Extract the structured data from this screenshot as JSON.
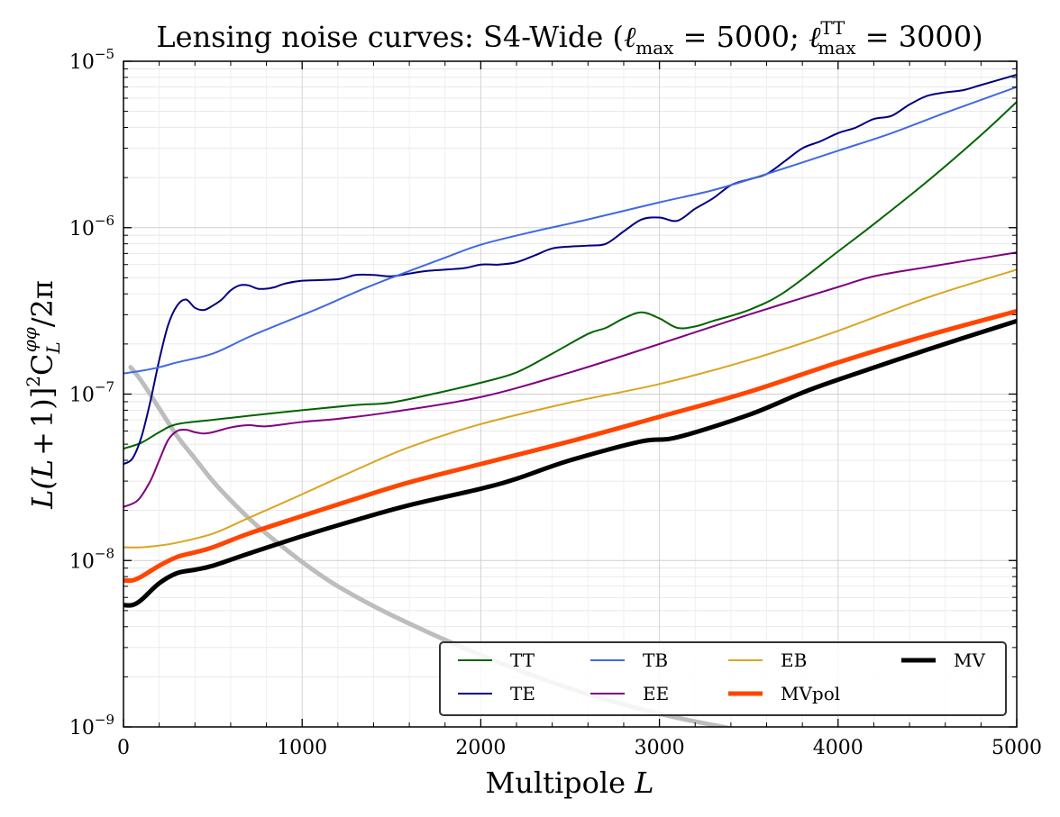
{
  "chart_data": {
    "type": "line",
    "title": "Lensing noise curves: S4-Wide (ℓmax = 5000; ℓmax TT = 3000)",
    "title_parts": {
      "prefix": "Lensing noise curves: S4-Wide (",
      "ell": "ℓ",
      "sub_max": "max",
      "eq1": " = 5000; ",
      "ell2": "ℓ",
      "sup_tt": "TT",
      "sub_max2": "max",
      "eq2": " = 3000)"
    },
    "xlabel": "Multipole L",
    "xlabel_parts": {
      "text": "Multipole ",
      "var": "L"
    },
    "ylabel": "L(L+1)]²C_L^φφ/2π",
    "ylabel_parts": {
      "a": "L(L",
      "b": "+",
      "c": "1)]",
      "sq": "2",
      "C": "C",
      "sub": "L",
      "sup": "φφ",
      "tail": "/2π"
    },
    "xlim": [
      0,
      5000
    ],
    "ylim": [
      1e-09,
      1e-05
    ],
    "yscale": "log",
    "grid": true,
    "legend_position": "lower-right",
    "xticks": [
      {
        "value": 0,
        "label": "0"
      },
      {
        "value": 1000,
        "label": "1000"
      },
      {
        "value": 2000,
        "label": "2000"
      },
      {
        "value": 3000,
        "label": "3000"
      },
      {
        "value": 4000,
        "label": "4000"
      },
      {
        "value": 5000,
        "label": "5000"
      }
    ],
    "yticks": [
      {
        "value": 1e-09,
        "base": "10",
        "exp": "−9"
      },
      {
        "value": 1e-08,
        "base": "10",
        "exp": "−8"
      },
      {
        "value": 1e-07,
        "base": "10",
        "exp": "−7"
      },
      {
        "value": 1e-06,
        "base": "10",
        "exp": "−6"
      },
      {
        "value": 1e-05,
        "base": "10",
        "exp": "−5"
      }
    ],
    "series": [
      {
        "name": "",
        "color": "#bdbdbd",
        "width": 5,
        "legend": false,
        "x": [
          40,
          100,
          200,
          300,
          400,
          500,
          600,
          700,
          800,
          1000,
          1200,
          1500,
          2000,
          2500,
          3000,
          3400
        ],
        "y": [
          1.45e-07,
          1.2e-07,
          8.2e-08,
          5.6e-08,
          4.1e-08,
          3e-08,
          2.3e-08,
          1.8e-08,
          1.45e-08,
          9.8e-09,
          7e-09,
          4.7e-09,
          2.7e-09,
          1.7e-09,
          1.2e-09,
          9.8e-10
        ]
      },
      {
        "name": "TT",
        "color": "#006400",
        "width": 2,
        "x": [
          0,
          100,
          200,
          300,
          500,
          700,
          1000,
          1300,
          1500,
          1800,
          2000,
          2200,
          2400,
          2600,
          2700,
          2800,
          2900,
          3000,
          3100,
          3200,
          3300,
          3500,
          3700,
          4000,
          4200,
          4500,
          4800,
          5000
        ],
        "y": [
          4.7e-08,
          5.1e-08,
          5.9e-08,
          6.6e-08,
          7e-08,
          7.4e-08,
          8e-08,
          8.6e-08,
          8.9e-08,
          1.04e-07,
          1.17e-07,
          1.35e-07,
          1.75e-07,
          2.3e-07,
          2.5e-07,
          2.85e-07,
          3.1e-07,
          2.85e-07,
          2.5e-07,
          2.55e-07,
          2.75e-07,
          3.2e-07,
          4.1e-07,
          7.2e-07,
          1.05e-06,
          1.9e-06,
          3.6e-06,
          5.7e-06
        ]
      },
      {
        "name": "TE",
        "color": "#000080",
        "width": 2,
        "x": [
          0,
          50,
          100,
          150,
          200,
          250,
          300,
          350,
          400,
          450,
          500,
          550,
          600,
          650,
          700,
          750,
          800,
          850,
          900,
          1000,
          1200,
          1300,
          1400,
          1500,
          1600,
          1700,
          1900,
          2000,
          2100,
          2200,
          2300,
          2400,
          2500,
          2600,
          2700,
          2800,
          2900,
          3000,
          3100,
          3200,
          3300,
          3400,
          3500,
          3600,
          3700,
          3800,
          3900,
          4000,
          4100,
          4200,
          4300,
          4400,
          4500,
          4600,
          4700,
          4800,
          5000
        ],
        "y": [
          3.8e-08,
          4.1e-08,
          5.5e-08,
          9e-08,
          1.6e-07,
          2.6e-07,
          3.4e-07,
          3.7e-07,
          3.3e-07,
          3.2e-07,
          3.4e-07,
          3.7e-07,
          4.2e-07,
          4.5e-07,
          4.5e-07,
          4.3e-07,
          4.3e-07,
          4.4e-07,
          4.6e-07,
          4.8e-07,
          4.9e-07,
          5.2e-07,
          5.2e-07,
          5.1e-07,
          5.3e-07,
          5.5e-07,
          5.7e-07,
          6e-07,
          6e-07,
          6.2e-07,
          6.8e-07,
          7.5e-07,
          7.7e-07,
          7.8e-07,
          8e-07,
          9.5e-07,
          1.12e-06,
          1.15e-06,
          1.1e-06,
          1.3e-06,
          1.5e-06,
          1.8e-06,
          1.95e-06,
          2.1e-06,
          2.5e-06,
          3e-06,
          3.3e-06,
          3.7e-06,
          4e-06,
          4.5e-06,
          4.7e-06,
          5.5e-06,
          6.2e-06,
          6.5e-06,
          6.7e-06,
          7.2e-06,
          8.3e-06
        ]
      },
      {
        "name": "TB",
        "color": "#4169e1",
        "width": 2,
        "x": [
          0,
          100,
          200,
          300,
          500,
          700,
          900,
          1100,
          1300,
          1500,
          1800,
          2000,
          2300,
          2600,
          3000,
          3300,
          3600,
          4000,
          4300,
          4600,
          5000
        ],
        "y": [
          1.33e-07,
          1.38e-07,
          1.45e-07,
          1.55e-07,
          1.75e-07,
          2.2e-07,
          2.7e-07,
          3.3e-07,
          4.1e-07,
          5e-07,
          6.6e-07,
          7.9e-07,
          9.5e-07,
          1.12e-06,
          1.42e-06,
          1.68e-06,
          2.1e-06,
          2.9e-06,
          3.7e-06,
          4.9e-06,
          7e-06
        ]
      },
      {
        "name": "EE",
        "color": "#800080",
        "width": 2,
        "x": [
          0,
          80,
          150,
          200,
          250,
          300,
          350,
          400,
          450,
          500,
          600,
          700,
          800,
          1000,
          1200,
          1500,
          2000,
          2500,
          3000,
          3500,
          4000,
          4200,
          4500,
          5000
        ],
        "y": [
          2.1e-08,
          2.3e-08,
          3e-08,
          4e-08,
          5.3e-08,
          6e-08,
          6.1e-08,
          5.9e-08,
          5.8e-08,
          5.9e-08,
          6.3e-08,
          6.5e-08,
          6.4e-08,
          6.8e-08,
          7.1e-08,
          7.8e-08,
          9.6e-08,
          1.35e-07,
          2e-07,
          3e-07,
          4.4e-07,
          5.1e-07,
          5.8e-07,
          7.1e-07
        ]
      },
      {
        "name": "EB",
        "color": "#daa520",
        "width": 2,
        "x": [
          0,
          100,
          200,
          300,
          500,
          700,
          1000,
          1300,
          1600,
          2000,
          2500,
          3000,
          3500,
          4000,
          4500,
          5000
        ],
        "y": [
          1.2e-08,
          1.2e-08,
          1.23e-08,
          1.28e-08,
          1.45e-08,
          1.8e-08,
          2.5e-08,
          3.5e-08,
          4.8e-08,
          6.6e-08,
          8.9e-08,
          1.15e-07,
          1.6e-07,
          2.4e-07,
          3.8e-07,
          5.6e-07
        ]
      },
      {
        "name": "MVpol",
        "color": "#ff4500",
        "width": 5,
        "x": [
          0,
          50,
          100,
          200,
          300,
          400,
          500,
          700,
          1000,
          1300,
          1600,
          2000,
          2500,
          3000,
          3500,
          4000,
          4500,
          5000
        ],
        "y": [
          7.6e-09,
          7.6e-09,
          8e-09,
          9.3e-09,
          1.05e-08,
          1.12e-08,
          1.2e-08,
          1.45e-08,
          1.85e-08,
          2.35e-08,
          2.95e-08,
          3.8e-08,
          5.2e-08,
          7.3e-08,
          1.03e-07,
          1.55e-07,
          2.25e-07,
          3.15e-07
        ]
      },
      {
        "name": "MV",
        "color": "#000000",
        "width": 5,
        "x": [
          0,
          50,
          100,
          200,
          300,
          400,
          500,
          700,
          1000,
          1300,
          1600,
          2000,
          2200,
          2500,
          2900,
          3100,
          3500,
          3800,
          4000,
          4500,
          5000
        ],
        "y": [
          5.4e-09,
          5.4e-09,
          5.8e-09,
          7.3e-09,
          8.4e-09,
          8.8e-09,
          9.3e-09,
          1.1e-08,
          1.4e-08,
          1.75e-08,
          2.15e-08,
          2.7e-08,
          3.1e-08,
          4e-08,
          5.2e-08,
          5.5e-08,
          7.5e-08,
          1.02e-07,
          1.22e-07,
          1.85e-07,
          2.75e-07
        ]
      }
    ],
    "legend": {
      "entries": [
        {
          "label": "TT",
          "color": "#006400",
          "width": 2
        },
        {
          "label": "TE",
          "color": "#000080",
          "width": 2
        },
        {
          "label": "TB",
          "color": "#4169e1",
          "width": 2
        },
        {
          "label": "EE",
          "color": "#800080",
          "width": 2
        },
        {
          "label": "EB",
          "color": "#daa520",
          "width": 2
        },
        {
          "label": "MVpol",
          "color": "#ff4500",
          "width": 5
        },
        {
          "label": "MV",
          "color": "#000000",
          "width": 5
        }
      ],
      "columns": 4
    }
  }
}
